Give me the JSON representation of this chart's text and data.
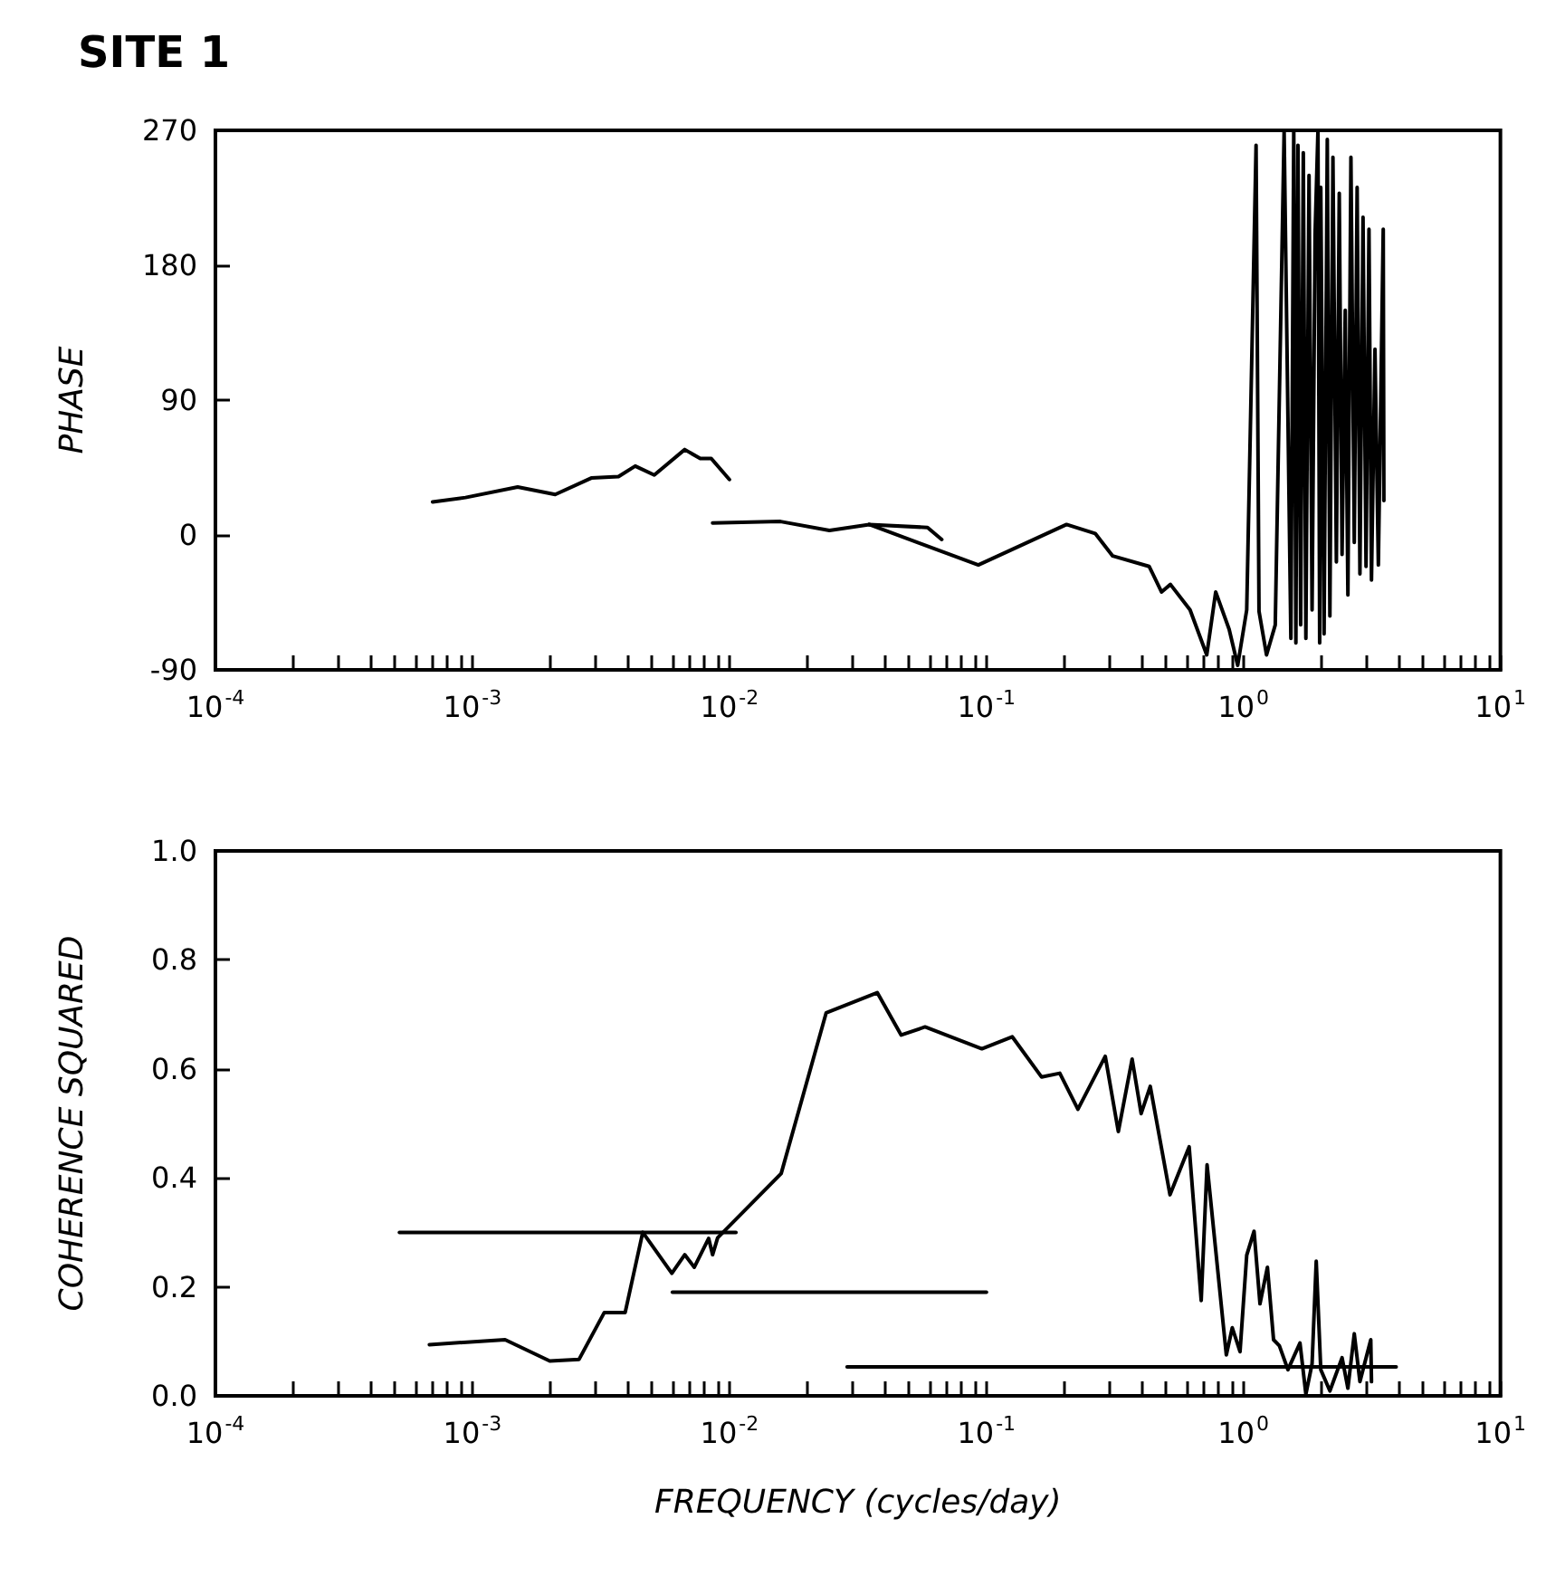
{
  "chart_data": [
    {
      "type": "line",
      "title": "SITE 1",
      "ylabel": "PHASE",
      "log": "x",
      "grid": false,
      "marker": "none",
      "line_style": "solid",
      "xlim": [
        0.0001,
        10
      ],
      "ylim": [
        -90,
        270
      ],
      "xticks": [
        {
          "value": 0.0001,
          "label": "10$^{-4}$"
        },
        {
          "value": 0.0002,
          "label": null
        },
        {
          "value": 0.0003,
          "label": null
        },
        {
          "value": 0.0004,
          "label": null
        },
        {
          "value": 0.0005,
          "label": null
        },
        {
          "value": 0.0006,
          "label": null
        },
        {
          "value": 0.0007,
          "label": null
        },
        {
          "value": 0.0008,
          "label": null
        },
        {
          "value": 0.0009,
          "label": null
        },
        {
          "value": 0.001,
          "label": "10$^{-3}$"
        },
        {
          "value": 0.002,
          "label": null
        },
        {
          "value": 0.003,
          "label": null
        },
        {
          "value": 0.004,
          "label": null
        },
        {
          "value": 0.005,
          "label": null
        },
        {
          "value": 0.006,
          "label": null
        },
        {
          "value": 0.007,
          "label": null
        },
        {
          "value": 0.008,
          "label": null
        },
        {
          "value": 0.009,
          "label": null
        },
        {
          "value": 0.01,
          "label": "10$^{-2}$"
        },
        {
          "value": 0.02,
          "label": null
        },
        {
          "value": 0.03,
          "label": null
        },
        {
          "value": 0.04,
          "label": null
        },
        {
          "value": 0.05,
          "label": null
        },
        {
          "value": 0.06,
          "label": null
        },
        {
          "value": 0.07,
          "label": null
        },
        {
          "value": 0.08,
          "label": null
        },
        {
          "value": 0.09,
          "label": null
        },
        {
          "value": 0.1,
          "label": "10$^{-1}$"
        },
        {
          "value": 0.2,
          "label": null
        },
        {
          "value": 0.3,
          "label": null
        },
        {
          "value": 0.4,
          "label": null
        },
        {
          "value": 0.5,
          "label": null
        },
        {
          "value": 0.6,
          "label": null
        },
        {
          "value": 0.7,
          "label": null
        },
        {
          "value": 0.8,
          "label": null
        },
        {
          "value": 0.9,
          "label": null
        },
        {
          "value": 1,
          "label": "10$^{0}$"
        },
        {
          "value": 2,
          "label": null
        },
        {
          "value": 3,
          "label": null
        },
        {
          "value": 4,
          "label": null
        },
        {
          "value": 5,
          "label": null
        },
        {
          "value": 6,
          "label": null
        },
        {
          "value": 7,
          "label": null
        },
        {
          "value": 8,
          "label": null
        },
        {
          "value": 9,
          "label": null
        },
        {
          "value": 10,
          "label": "10$^{1}$"
        }
      ],
      "yticks": [
        -90,
        0,
        90,
        180,
        270
      ],
      "series": [
        {
          "color": "#000000",
          "x": [
            0.0007,
            0.00094,
            0.0015,
            0.0021,
            0.0029,
            0.0037,
            0.0043,
            0.0051,
            0.0067,
            0.0077,
            0.0085,
            0.01
          ],
          "values": [
            22,
            25,
            32,
            27,
            38,
            39,
            46,
            40,
            57,
            51,
            51,
            37
          ]
        },
        {
          "color": "#000000",
          "x": [
            0.0086,
            0.0158,
            0.0245,
            0.035,
            0.059,
            0.067
          ],
          "values": [
            8,
            9,
            3,
            7,
            5,
            -3
          ]
        },
        {
          "color": "#000000",
          "x": [
            0.035,
            0.093,
            0.205,
            0.265,
            0.31,
            0.43,
            0.48,
            0.52,
            0.62,
            0.72,
            0.78,
            0.88,
            0.95,
            1.03,
            1.12,
            1.15,
            1.23,
            1.33,
            1.44,
            1.53,
            1.57,
            1.6,
            1.63,
            1.67,
            1.71,
            1.75,
            1.8,
            1.85,
            1.9,
            1.95,
            1.98,
            2.0,
            2.06,
            2.12,
            2.17,
            2.23,
            2.3,
            2.36,
            2.42,
            2.49,
            2.55,
            2.62,
            2.7,
            2.77,
            2.84,
            2.92,
            3.0,
            3.08,
            3.15,
            3.25,
            3.35,
            3.5,
            3.52
          ],
          "values": [
            7,
            -20,
            7,
            1,
            -14,
            -21,
            -38,
            -33,
            -50,
            -80,
            -38,
            -63,
            -87,
            -50,
            260,
            -51,
            -80,
            -60,
            269,
            -69,
            270,
            -72,
            260,
            -60,
            255,
            -69,
            240,
            -50,
            200,
            270,
            -72,
            232,
            -66,
            264,
            -54,
            252,
            -18,
            228,
            -13,
            150,
            -40,
            252,
            -5,
            232,
            -26,
            212,
            -21,
            204,
            -30,
            124,
            -20,
            204,
            23
          ]
        }
      ]
    },
    {
      "type": "line",
      "xlabel": "FREQUENCY (cycles/day)",
      "ylabel": "COHERENCE SQUARED",
      "log": "x",
      "grid": false,
      "marker": "none",
      "line_style": "solid",
      "xlim": [
        0.0001,
        10
      ],
      "ylim": [
        0,
        1
      ],
      "xticks": [
        {
          "value": 0.0001,
          "label": "10$^{-4}$"
        },
        {
          "value": 0.0002,
          "label": null
        },
        {
          "value": 0.0003,
          "label": null
        },
        {
          "value": 0.0004,
          "label": null
        },
        {
          "value": 0.0005,
          "label": null
        },
        {
          "value": 0.0006,
          "label": null
        },
        {
          "value": 0.0007,
          "label": null
        },
        {
          "value": 0.0008,
          "label": null
        },
        {
          "value": 0.0009,
          "label": null
        },
        {
          "value": 0.001,
          "label": "10$^{-3}$"
        },
        {
          "value": 0.002,
          "label": null
        },
        {
          "value": 0.003,
          "label": null
        },
        {
          "value": 0.004,
          "label": null
        },
        {
          "value": 0.005,
          "label": null
        },
        {
          "value": 0.006,
          "label": null
        },
        {
          "value": 0.007,
          "label": null
        },
        {
          "value": 0.008,
          "label": null
        },
        {
          "value": 0.009,
          "label": null
        },
        {
          "value": 0.01,
          "label": "10$^{-2}$"
        },
        {
          "value": 0.02,
          "label": null
        },
        {
          "value": 0.03,
          "label": null
        },
        {
          "value": 0.04,
          "label": null
        },
        {
          "value": 0.05,
          "label": null
        },
        {
          "value": 0.06,
          "label": null
        },
        {
          "value": 0.07,
          "label": null
        },
        {
          "value": 0.08,
          "label": null
        },
        {
          "value": 0.09,
          "label": null
        },
        {
          "value": 0.1,
          "label": "10$^{-1}$"
        },
        {
          "value": 0.2,
          "label": null
        },
        {
          "value": 0.3,
          "label": null
        },
        {
          "value": 0.4,
          "label": null
        },
        {
          "value": 0.5,
          "label": null
        },
        {
          "value": 0.6,
          "label": null
        },
        {
          "value": 0.7,
          "label": null
        },
        {
          "value": 0.8,
          "label": null
        },
        {
          "value": 0.9,
          "label": null
        },
        {
          "value": 1,
          "label": "10$^{0}$"
        },
        {
          "value": 2,
          "label": null
        },
        {
          "value": 3,
          "label": null
        },
        {
          "value": 4,
          "label": null
        },
        {
          "value": 5,
          "label": null
        },
        {
          "value": 6,
          "label": null
        },
        {
          "value": 7,
          "label": null
        },
        {
          "value": 8,
          "label": null
        },
        {
          "value": 9,
          "label": null
        },
        {
          "value": 10,
          "label": "10$^{1}$"
        }
      ],
      "yticks": [
        {
          "value": 0,
          "label": "0.0"
        },
        0.2,
        0.4,
        0.6,
        0.8,
        {
          "value": 1,
          "label": "1.0"
        }
      ],
      "series": [
        {
          "color": "#000000",
          "x": [
            0.00068,
            0.00134,
            0.002,
            0.0026,
            0.00326,
            0.00393,
            0.0046,
            0.00597,
            0.0067,
            0.0073,
            0.0083,
            0.0086,
            0.009,
            0.0159,
            0.0238,
            0.0376,
            0.0466,
            0.0577,
            0.096,
            0.126,
            0.164,
            0.193,
            0.227,
            0.29,
            0.326,
            0.369,
            0.4,
            0.434,
            0.518,
            0.615,
            0.685,
            0.722,
            0.858,
            0.905,
            0.97,
            1.03,
            1.1,
            1.16,
            1.24,
            1.31,
            1.38,
            1.49,
            1.66,
            1.75,
            1.85,
            1.92,
            2.0,
            2.17,
            2.42,
            2.55,
            2.7,
            2.84,
            3.13,
            3.15
          ],
          "values": [
            0.094,
            0.103,
            0.064,
            0.067,
            0.153,
            0.153,
            0.3,
            0.225,
            0.259,
            0.236,
            0.289,
            0.259,
            0.29,
            0.408,
            0.703,
            0.74,
            0.662,
            0.677,
            0.637,
            0.659,
            0.585,
            0.592,
            0.526,
            0.623,
            0.485,
            0.618,
            0.518,
            0.568,
            0.369,
            0.457,
            0.175,
            0.424,
            0.075,
            0.125,
            0.081,
            0.258,
            0.302,
            0.169,
            0.236,
            0.103,
            0.092,
            0.048,
            0.097,
            0.003,
            0.059,
            0.247,
            0.048,
            0.009,
            0.07,
            0.014,
            0.114,
            0.026,
            0.103,
            0.026
          ]
        },
        {
          "color": "#000000",
          "x": [
            0.00052,
            0.0106
          ],
          "values": [
            0.3,
            0.3
          ]
        },
        {
          "color": "#000000",
          "x": [
            0.006,
            0.1
          ],
          "values": [
            0.19,
            0.19
          ]
        },
        {
          "color": "#000000",
          "x": [
            0.0287,
            3.93
          ],
          "values": [
            0.053,
            0.053
          ]
        }
      ]
    }
  ]
}
